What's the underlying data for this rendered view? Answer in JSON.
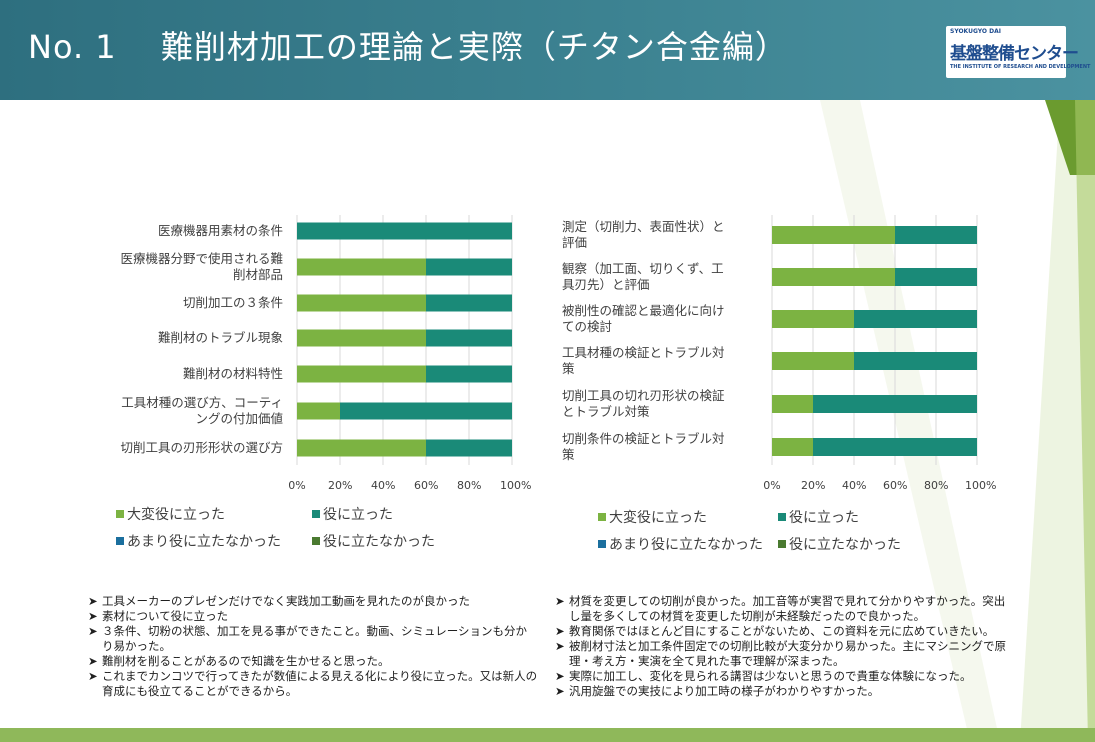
{
  "header": {
    "title": "No. 1　 難削材加工の理論と実際（チタン合金編）"
  },
  "logo": {
    "top": "SYOKUGYO DAI",
    "main": "基盤整備センター",
    "sub": "THE INSTITUTE OF RESEARCH AND DEVELOPMENT"
  },
  "colors": {
    "very_useful": "#7cb342",
    "useful": "#1a8a78",
    "not_very_useful": "#1b6f9e",
    "not_useful": "#4a7a30",
    "header_bg": "#357a89"
  },
  "chart_data": [
    {
      "type": "bar",
      "orientation": "horizontal-stacked-100",
      "categories": [
        "医療機器用素材の条件",
        "医療機器分野で使用される難削材部品",
        "切削加工の３条件",
        "難削材のトラブル現象",
        "難削材の材料特性",
        "工具材種の選び方、コーティングの付加価値",
        "切削工具の刃形形状の選び方"
      ],
      "series": [
        {
          "name": "大変役に立った",
          "values": [
            0,
            60,
            60,
            60,
            60,
            20,
            60
          ]
        },
        {
          "name": "役に立った",
          "values": [
            100,
            40,
            40,
            40,
            40,
            80,
            40
          ]
        },
        {
          "name": "あまり役に立たなかった",
          "values": [
            0,
            0,
            0,
            0,
            0,
            0,
            0
          ]
        },
        {
          "name": "役に立たなかった",
          "values": [
            0,
            0,
            0,
            0,
            0,
            0,
            0
          ]
        }
      ],
      "xticks": [
        "0%",
        "20%",
        "40%",
        "60%",
        "80%",
        "100%"
      ],
      "xlim": [
        0,
        100
      ],
      "legend": "bottom"
    },
    {
      "type": "bar",
      "orientation": "horizontal-stacked-100",
      "categories": [
        "測定（切削力、表面性状）と評価",
        "観察（加工面、切りくず、工具刃先）と評価",
        "被削性の確認と最適化に向けての検討",
        "工具材種の検証とトラブル対策",
        "切削工具の切れ刃形状の検証とトラブル対策",
        "切削条件の検証とトラブル対策"
      ],
      "series": [
        {
          "name": "大変役に立った",
          "values": [
            60,
            60,
            40,
            40,
            20,
            20
          ]
        },
        {
          "name": "役に立った",
          "values": [
            40,
            40,
            60,
            60,
            80,
            80
          ]
        },
        {
          "name": "あまり役に立たなかった",
          "values": [
            0,
            0,
            0,
            0,
            0,
            0
          ]
        },
        {
          "name": "役に立たなかった",
          "values": [
            0,
            0,
            0,
            0,
            0,
            0
          ]
        }
      ],
      "xticks": [
        "0%",
        "20%",
        "40%",
        "60%",
        "80%",
        "100%"
      ],
      "xlim": [
        0,
        100
      ],
      "legend": "bottom"
    }
  ],
  "left_chart_labels": [
    "医療機器用素材の条件",
    "医療機器分野で使用される難\n削材部品",
    "切削加工の３条件",
    "難削材のトラブル現象",
    "難削材の材料特性",
    "工具材種の選び方、コーティ\nングの付加価値",
    "切削工具の刃形形状の選び方"
  ],
  "right_chart_labels": [
    "測定（切削力、表面性状）と\n評価",
    "観察（加工面、切りくず、工\n具刃先）と評価",
    "被削性の確認と最適化に向け\nての検討",
    "工具材種の検証とトラブル対\n策",
    "切削工具の切れ刃形状の検証\nとトラブル対策",
    "切削条件の検証とトラブル対\n策"
  ],
  "legend": {
    "very_useful": "大変役に立った",
    "useful": "役に立った",
    "not_very_useful": "あまり役に立たなかった",
    "not_useful": "役に立たなかった"
  },
  "comments_left": [
    "工具メーカーのプレゼンだけでなく実践加工動画を見れたのが良かった",
    "素材について役に立った",
    "３条件、切粉の状態、加工を見る事ができたこと。動画、シミュレーションも分かり易かった。",
    "難削材を削ることがあるので知識を生かせると思った。",
    "これまでカンコツで行ってきたが数値による見える化により役に立った。又は新人の育成にも役立てることができるから。"
  ],
  "comments_right": [
    "材質を変更しての切削が良かった。加工音等が実習で見れて分かりやすかった。突出し量を多くしての材質を変更した切削が未経験だったので良かった。",
    "教育関係ではほとんど目にすることがないため、この資料を元に広めていきたい。",
    "被削材寸法と加工条件固定での切削比較が大変分かり易かった。主にマシニングで原理・考え方・実演を全て見れた事で理解が深まった。",
    "実際に加工し、変化を見られる講習は少ないと思うので貴重な体験になった。",
    "汎用旋盤での実技により加工時の様子がわかりやすかった。"
  ]
}
